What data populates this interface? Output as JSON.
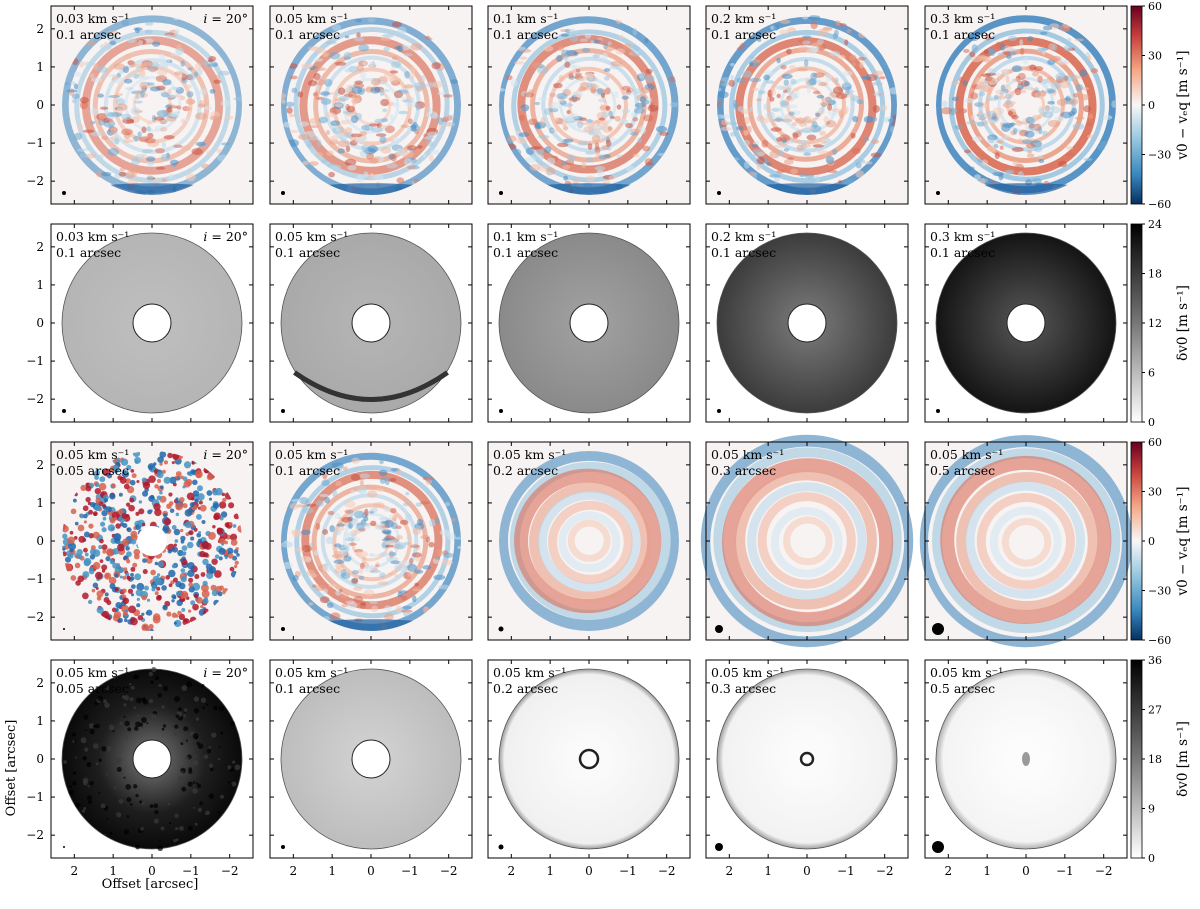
{
  "figure": {
    "xlabel": "Offset [arcsec]",
    "ylabel": "Offset [arcsec]",
    "inclination_label": "i = 20°"
  },
  "chart_data": {
    "type": "heatmap",
    "layout": "4 rows x 5 columns of disk maps",
    "xlim": [
      2.6,
      -2.6
    ],
    "ylim": [
      -2.6,
      2.6
    ],
    "x_ticks": [
      2,
      1,
      0,
      -1,
      -2
    ],
    "y_ticks": [
      2,
      1,
      0,
      -1,
      -2
    ],
    "rows": [
      {
        "kind": "residual",
        "colorbar_label": "v0 − v_eq [m s^-1]",
        "colormap": "RdBu_r",
        "clim": [
          -60,
          60
        ],
        "colorbar_ticks": [
          60,
          30,
          0,
          -30,
          -60
        ],
        "panels": [
          {
            "line1": "0.03 km s^-1",
            "line2": "0.1 arcsec",
            "inclination": true
          },
          {
            "line1": "0.05 km s^-1",
            "line2": "0.1 arcsec"
          },
          {
            "line1": "0.1 km s^-1",
            "line2": "0.1 arcsec"
          },
          {
            "line1": "0.2 km s^-1",
            "line2": "0.1 arcsec"
          },
          {
            "line1": "0.3 km s^-1",
            "line2": "0.1 arcsec"
          }
        ]
      },
      {
        "kind": "uncertainty",
        "colorbar_label": "δv0 [m s^-1]",
        "colormap": "Greys",
        "clim": [
          0,
          24
        ],
        "colorbar_ticks": [
          24,
          18,
          12,
          6,
          0
        ],
        "panels": [
          {
            "line1": "0.03 km s^-1",
            "line2": "0.1 arcsec",
            "inclination": true
          },
          {
            "line1": "0.05 km s^-1",
            "line2": "0.1 arcsec"
          },
          {
            "line1": "0.1 km s^-1",
            "line2": "0.1 arcsec"
          },
          {
            "line1": "0.2 km s^-1",
            "line2": "0.1 arcsec"
          },
          {
            "line1": "0.3 km s^-1",
            "line2": "0.1 arcsec"
          }
        ]
      },
      {
        "kind": "residual",
        "colorbar_label": "v0 − v_eq [m s^-1]",
        "colormap": "RdBu_r",
        "clim": [
          -60,
          60
        ],
        "colorbar_ticks": [
          60,
          30,
          0,
          -30,
          -60
        ],
        "panels": [
          {
            "line1": "0.05 km s^-1",
            "line2": "0.05 arcsec",
            "inclination": true
          },
          {
            "line1": "0.05 km s^-1",
            "line2": "0.1 arcsec"
          },
          {
            "line1": "0.05 km s^-1",
            "line2": "0.2 arcsec"
          },
          {
            "line1": "0.05 km s^-1",
            "line2": "0.3 arcsec"
          },
          {
            "line1": "0.05 km s^-1",
            "line2": "0.5 arcsec"
          }
        ]
      },
      {
        "kind": "uncertainty",
        "colorbar_label": "δv0 [m s^-1]",
        "colormap": "Greys",
        "clim": [
          0,
          36
        ],
        "colorbar_ticks": [
          36,
          27,
          18,
          9,
          0
        ],
        "panels": [
          {
            "line1": "0.05 km s^-1",
            "line2": "0.05 arcsec",
            "inclination": true
          },
          {
            "line1": "0.05 km s^-1",
            "line2": "0.1 arcsec"
          },
          {
            "line1": "0.05 km s^-1",
            "line2": "0.2 arcsec"
          },
          {
            "line1": "0.05 km s^-1",
            "line2": "0.3 arcsec"
          },
          {
            "line1": "0.05 km s^-1",
            "line2": "0.5 arcsec"
          }
        ]
      }
    ]
  }
}
